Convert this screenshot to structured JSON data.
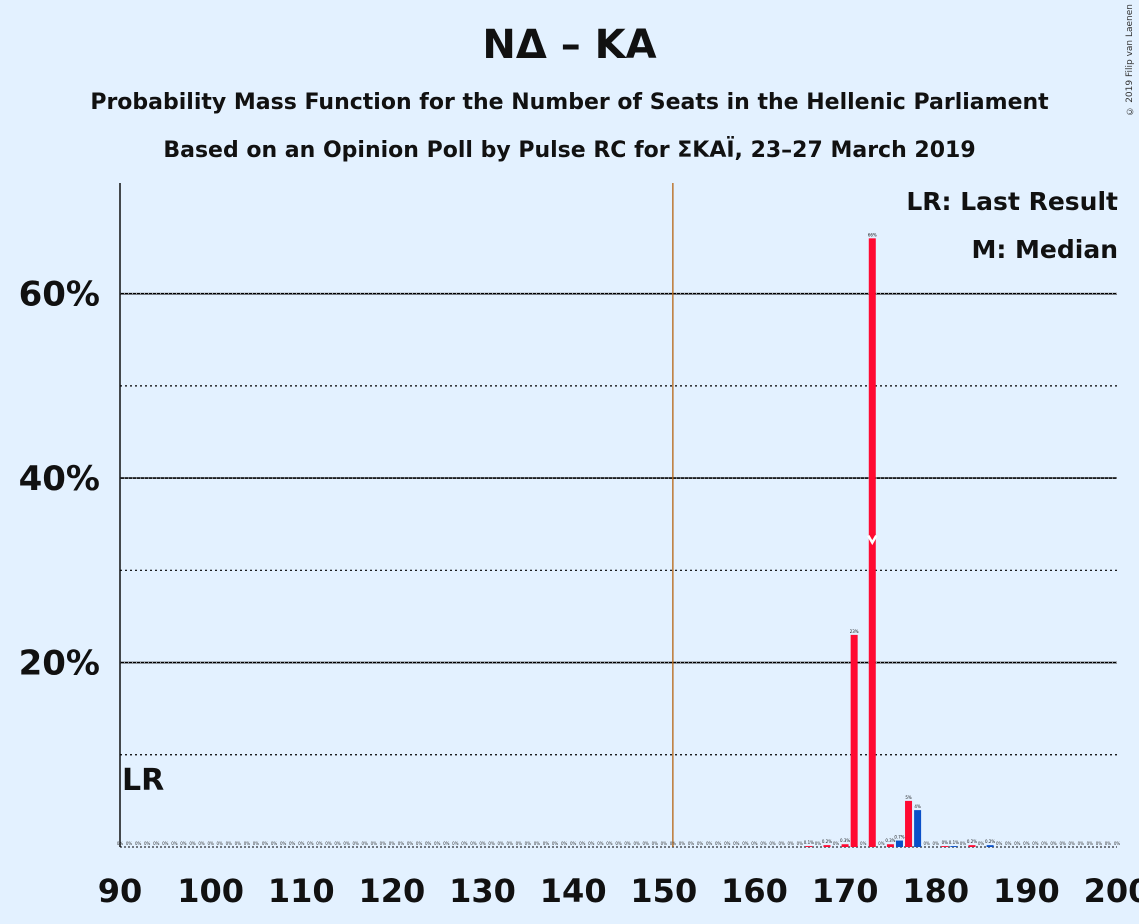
{
  "title": "ΝΔ – ΚΑ",
  "subtitle1": "Probability Mass Function for the Number of Seats in the Hellenic Parliament",
  "subtitle2": "Based on an Opinion Poll by Pulse RC for ΣΚΑΪ, 23–27 March 2019",
  "credit": "© 2019 Filip van Laenen",
  "colors": {
    "background": "#e3f1ff",
    "red": "#ff0a32",
    "blue": "#0a50c8",
    "majority_line": "#b35a00"
  },
  "chart_data": {
    "type": "bar",
    "xlim": [
      90,
      200
    ],
    "ylim": [
      0,
      72
    ],
    "x_ticks": [
      "90",
      "100",
      "110",
      "120",
      "130",
      "140",
      "150",
      "160",
      "170",
      "180",
      "190",
      "200"
    ],
    "y_ticks": [
      {
        "value": 20,
        "label": "20%"
      },
      {
        "value": 40,
        "label": "40%"
      },
      {
        "value": 60,
        "label": "60%"
      }
    ],
    "minor_gridlines": [
      10,
      30,
      50
    ],
    "majority_line": 151,
    "last_result": {
      "seats": 90,
      "label": "LR"
    },
    "median": {
      "seats": 173,
      "value": 33
    },
    "legend": {
      "last_result": "LR: Last Result",
      "median": "M: Median",
      "position": "top-right"
    },
    "red_series": {
      "x": [
        166,
        168,
        170,
        171,
        173,
        175,
        177,
        181,
        184
      ],
      "values": [
        0.1,
        0.2,
        0.3,
        23,
        66,
        0.3,
        5,
        0.1,
        0.2
      ],
      "labels": [
        "0.1%",
        "0.2%",
        "0.3%",
        "23%",
        "66%",
        "0.3%",
        "5%",
        "0%",
        "0.2%"
      ]
    },
    "blue_series": {
      "x": [
        176,
        178,
        182,
        186
      ],
      "values": [
        0.7,
        4,
        0.1,
        0.2
      ],
      "labels": [
        "0.7%",
        "4%",
        "0.1%",
        "0.2%"
      ]
    },
    "zero_label": "0%"
  }
}
